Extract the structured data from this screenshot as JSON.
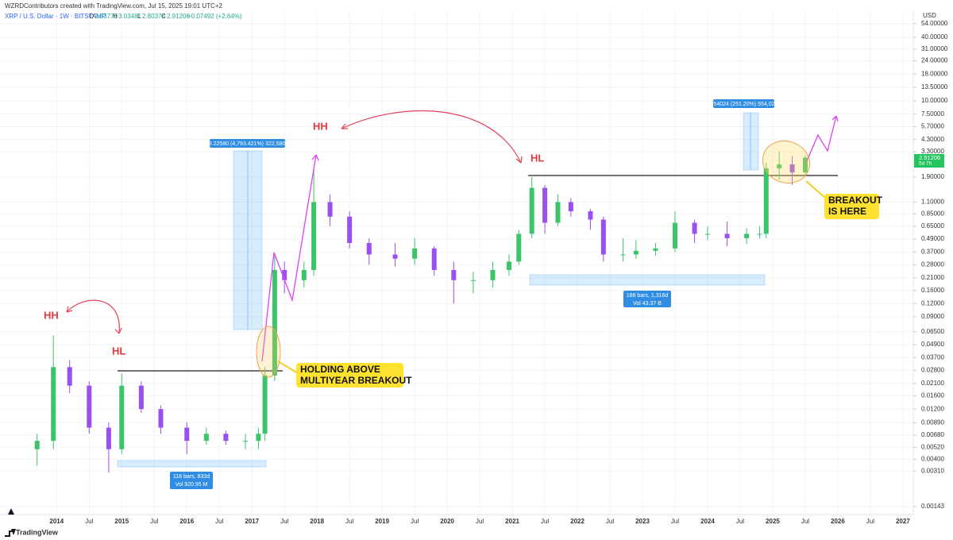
{
  "header": {
    "credit": "WZRDContributors created with TradingView.com, Jul 15, 2025 19:01 UTC+2",
    "symbol": "XRP / U.S. Dollar · 1W · BITSTAMP",
    "open_label": "O",
    "open": "2.83770",
    "high_label": "H",
    "high": "3.03481",
    "low_label": "L",
    "low": "2.80378",
    "close_label": "C",
    "close": "2.91206",
    "change": "+0.07492 (+2.64%)",
    "currency": "USD",
    "countdown": "5d 7h",
    "brand": "TradingView"
  },
  "annotations": {
    "hh_1": "HH",
    "hl_1": "HL",
    "hh_2": "HH",
    "hl_2": "HL",
    "callout_1": [
      "HOLDING ABOVE",
      "MULTIYEAR BREAKOUT"
    ],
    "callout_2": [
      "BREAKOUT",
      "IS HERE"
    ],
    "measure_1": "3.22580 (4,793.421%) 322,580",
    "measure_2": "5.54024 (251.20%) 554,024",
    "range_1": [
      "118 bars, 833d",
      "Vol 920.95 M"
    ],
    "range_2": [
      "188 bars, 1,316d",
      "Vol 43.37 B"
    ]
  },
  "chart_data": {
    "type": "candlestick",
    "log_scale": true,
    "grid": true,
    "up_color": "#3cc46a",
    "down_color": "#9a4ff0",
    "candles": {
      "x": [
        2013.7,
        2013.95,
        2014.2,
        2014.5,
        2014.8,
        2015.0,
        2015.3,
        2015.6,
        2016.0,
        2016.3,
        2016.6,
        2016.9,
        2017.1,
        2017.2,
        2017.35,
        2017.5,
        2017.8,
        2017.95,
        2018.2,
        2018.5,
        2018.8,
        2019.2,
        2019.5,
        2019.8,
        2020.1,
        2020.4,
        2020.7,
        2020.95,
        2021.1,
        2021.3,
        2021.5,
        2021.7,
        2021.9,
        2022.2,
        2022.4,
        2022.7,
        2022.9,
        2023.2,
        2023.5,
        2023.8,
        2024.0,
        2024.3,
        2024.6,
        2024.8,
        2024.9,
        2025.1,
        2025.3,
        2025.5
      ],
      "open": [
        0.005,
        0.006,
        0.03,
        0.02,
        0.008,
        0.005,
        0.02,
        0.012,
        0.008,
        0.006,
        0.007,
        0.006,
        0.006,
        0.007,
        0.025,
        0.25,
        0.2,
        0.25,
        1.1,
        0.8,
        0.45,
        0.35,
        0.32,
        0.4,
        0.25,
        0.2,
        0.2,
        0.25,
        0.3,
        0.55,
        1.5,
        0.7,
        1.1,
        0.9,
        0.75,
        0.35,
        0.35,
        0.38,
        0.4,
        0.7,
        0.55,
        0.55,
        0.5,
        0.55,
        0.55,
        2.3,
        2.5,
        2.1
      ],
      "high": [
        0.007,
        0.06,
        0.035,
        0.022,
        0.009,
        0.026,
        0.022,
        0.013,
        0.009,
        0.008,
        0.0075,
        0.007,
        0.008,
        0.03,
        0.35,
        0.3,
        0.3,
        2.3,
        1.3,
        0.9,
        0.5,
        0.45,
        0.5,
        0.42,
        0.3,
        0.24,
        0.3,
        0.35,
        0.6,
        1.9,
        1.6,
        1.3,
        1.2,
        0.95,
        0.8,
        0.5,
        0.48,
        0.45,
        0.9,
        0.75,
        0.65,
        0.72,
        0.62,
        0.65,
        2.6,
        3.3,
        3.0,
        3.03
      ],
      "low": [
        0.0035,
        0.005,
        0.017,
        0.007,
        0.003,
        0.0045,
        0.011,
        0.007,
        0.0045,
        0.0055,
        0.0055,
        0.005,
        0.005,
        0.006,
        0.022,
        0.15,
        0.17,
        0.22,
        0.65,
        0.4,
        0.28,
        0.27,
        0.28,
        0.22,
        0.12,
        0.15,
        0.17,
        0.22,
        0.28,
        0.5,
        0.55,
        0.65,
        0.8,
        0.6,
        0.3,
        0.3,
        0.32,
        0.34,
        0.37,
        0.45,
        0.48,
        0.42,
        0.44,
        0.5,
        0.5,
        1.8,
        1.6,
        2.0
      ],
      "close": [
        0.006,
        0.03,
        0.02,
        0.008,
        0.005,
        0.02,
        0.012,
        0.008,
        0.006,
        0.007,
        0.006,
        0.006,
        0.007,
        0.025,
        0.25,
        0.2,
        0.25,
        1.1,
        0.8,
        0.45,
        0.35,
        0.32,
        0.4,
        0.25,
        0.2,
        0.2,
        0.25,
        0.3,
        0.55,
        1.5,
        0.7,
        1.1,
        0.9,
        0.75,
        0.35,
        0.35,
        0.38,
        0.4,
        0.7,
        0.55,
        0.55,
        0.5,
        0.55,
        0.55,
        2.3,
        2.5,
        2.1,
        2.9
      ]
    },
    "xlim": [
      2013.13,
      2027.16
    ],
    "xticks": [
      2014,
      {
        "value": 2014.5,
        "label": "Jul"
      },
      2015,
      {
        "value": 2015.5,
        "label": "Jul"
      },
      2016,
      {
        "value": 2016.5,
        "label": "Jul"
      },
      2017,
      {
        "value": 2017.5,
        "label": "Jul"
      },
      2018,
      {
        "value": 2018.5,
        "label": "Jul"
      },
      2019,
      {
        "value": 2019.5,
        "label": "Jul"
      },
      2020,
      {
        "value": 2020.5,
        "label": "Jul"
      },
      2021,
      {
        "value": 2021.5,
        "label": "Jul"
      },
      2022,
      {
        "value": 2022.5,
        "label": "Jul"
      },
      2023,
      {
        "value": 2023.5,
        "label": "Jul"
      },
      2024,
      {
        "value": 2024.5,
        "label": "Jul"
      },
      2025,
      {
        "value": 2025.5,
        "label": "Jul"
      },
      2026,
      {
        "value": 2026.5,
        "label": "Jul"
      },
      2027
    ],
    "ylim": [
      0.0012,
      71
    ],
    "yticks": [
      {
        "value": 54,
        "label": "54.00000"
      },
      {
        "value": 40,
        "label": "40.00000"
      },
      {
        "value": 31,
        "label": "31.00000"
      },
      {
        "value": 24,
        "label": "24.00000"
      },
      {
        "value": 18,
        "label": "18.00000"
      },
      {
        "value": 13.5,
        "label": "13.50000"
      },
      {
        "value": 10,
        "label": "10.00000"
      },
      {
        "value": 7.5,
        "label": "7.50000"
      },
      {
        "value": 5.7,
        "label": "5.70000"
      },
      {
        "value": 4.3,
        "label": "4.30000"
      },
      {
        "value": 3.3,
        "label": "3.30000"
      },
      {
        "value": 1.9,
        "label": "1.90000"
      },
      {
        "value": 1.1,
        "label": "1.10000"
      },
      {
        "value": 0.85,
        "label": "0.85000"
      },
      {
        "value": 0.65,
        "label": "0.65000"
      },
      {
        "value": 0.49,
        "label": "0.49000"
      },
      {
        "value": 0.37,
        "label": "0.37000"
      },
      {
        "value": 0.28,
        "label": "0.28000"
      },
      {
        "value": 0.21,
        "label": "0.21000"
      },
      {
        "value": 0.16,
        "label": "0.16000"
      },
      {
        "value": 0.12,
        "label": "0.12000"
      },
      {
        "value": 0.09,
        "label": "0.09000"
      },
      {
        "value": 0.065,
        "label": "0.06500"
      },
      {
        "value": 0.049,
        "label": "0.04900"
      },
      {
        "value": 0.037,
        "label": "0.03700"
      },
      {
        "value": 0.028,
        "label": "0.02800"
      },
      {
        "value": 0.021,
        "label": "0.02100"
      },
      {
        "value": 0.016,
        "label": "0.01600"
      },
      {
        "value": 0.012,
        "label": "0.01200"
      },
      {
        "value": 0.0089,
        "label": "0.00890"
      },
      {
        "value": 0.0068,
        "label": "0.00680"
      },
      {
        "value": 0.0052,
        "label": "0.00520"
      },
      {
        "value": 0.004,
        "label": "0.00400"
      },
      {
        "value": 0.0031,
        "label": "0.00310"
      },
      {
        "value": 0.00143,
        "label": "0.00143"
      }
    ]
  }
}
